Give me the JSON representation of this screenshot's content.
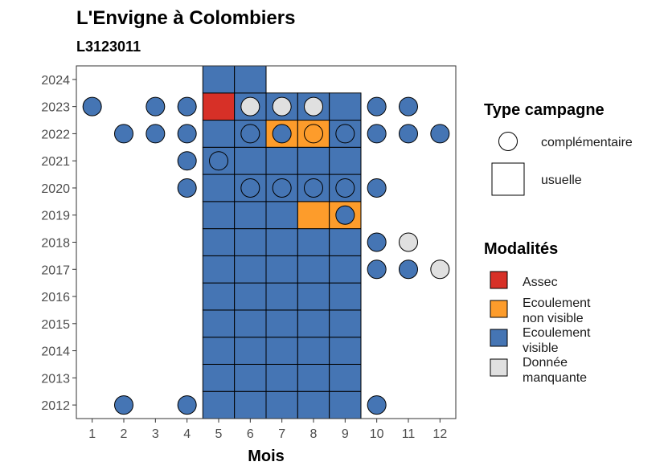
{
  "chart_data": {
    "type": "heatmap",
    "title": "L'Envigne à Colombiers",
    "subtitle": "L3123011",
    "xlabel": "Mois",
    "ylabel": "",
    "x": [
      1,
      2,
      3,
      4,
      5,
      6,
      7,
      8,
      9,
      10,
      11,
      12
    ],
    "y": [
      2012,
      2013,
      2014,
      2015,
      2016,
      2017,
      2018,
      2019,
      2020,
      2021,
      2022,
      2023,
      2024
    ],
    "xlim": [
      0.5,
      12.5
    ],
    "ylim": [
      2011.5,
      2024.5
    ],
    "grid": false,
    "legend_position": "right",
    "legend_shape_title": "Type campagne",
    "legend_shape_labels": {
      "complementaire": "complémentaire",
      "usuelle": "usuelle"
    },
    "legend_fill_title": "Modalités",
    "legend_fill_labels": [
      {
        "key": "assec",
        "lines": [
          "Assec"
        ]
      },
      {
        "key": "non_visible",
        "lines": [
          "Ecoulement",
          "non visible"
        ]
      },
      {
        "key": "visible",
        "lines": [
          "Ecoulement",
          "visible"
        ]
      },
      {
        "key": "manquante",
        "lines": [
          "Donnée",
          "manquante"
        ]
      }
    ],
    "colors": {
      "assec": "#d73027",
      "non_visible": "#fd9c2b",
      "visible": "#4575b4",
      "manquante": "#e0e0e0"
    },
    "usuelle": [
      {
        "year": 2012,
        "month": 5,
        "value": "visible"
      },
      {
        "year": 2012,
        "month": 6,
        "value": "visible"
      },
      {
        "year": 2012,
        "month": 7,
        "value": "visible"
      },
      {
        "year": 2012,
        "month": 8,
        "value": "visible"
      },
      {
        "year": 2012,
        "month": 9,
        "value": "visible"
      },
      {
        "year": 2013,
        "month": 5,
        "value": "visible"
      },
      {
        "year": 2013,
        "month": 6,
        "value": "visible"
      },
      {
        "year": 2013,
        "month": 7,
        "value": "visible"
      },
      {
        "year": 2013,
        "month": 8,
        "value": "visible"
      },
      {
        "year": 2013,
        "month": 9,
        "value": "visible"
      },
      {
        "year": 2014,
        "month": 5,
        "value": "visible"
      },
      {
        "year": 2014,
        "month": 6,
        "value": "visible"
      },
      {
        "year": 2014,
        "month": 7,
        "value": "visible"
      },
      {
        "year": 2014,
        "month": 8,
        "value": "visible"
      },
      {
        "year": 2014,
        "month": 9,
        "value": "visible"
      },
      {
        "year": 2015,
        "month": 5,
        "value": "visible"
      },
      {
        "year": 2015,
        "month": 6,
        "value": "visible"
      },
      {
        "year": 2015,
        "month": 7,
        "value": "visible"
      },
      {
        "year": 2015,
        "month": 8,
        "value": "visible"
      },
      {
        "year": 2015,
        "month": 9,
        "value": "visible"
      },
      {
        "year": 2016,
        "month": 5,
        "value": "visible"
      },
      {
        "year": 2016,
        "month": 6,
        "value": "visible"
      },
      {
        "year": 2016,
        "month": 7,
        "value": "visible"
      },
      {
        "year": 2016,
        "month": 8,
        "value": "visible"
      },
      {
        "year": 2016,
        "month": 9,
        "value": "visible"
      },
      {
        "year": 2017,
        "month": 5,
        "value": "visible"
      },
      {
        "year": 2017,
        "month": 6,
        "value": "visible"
      },
      {
        "year": 2017,
        "month": 7,
        "value": "visible"
      },
      {
        "year": 2017,
        "month": 8,
        "value": "visible"
      },
      {
        "year": 2017,
        "month": 9,
        "value": "visible"
      },
      {
        "year": 2018,
        "month": 5,
        "value": "visible"
      },
      {
        "year": 2018,
        "month": 6,
        "value": "visible"
      },
      {
        "year": 2018,
        "month": 7,
        "value": "visible"
      },
      {
        "year": 2018,
        "month": 8,
        "value": "visible"
      },
      {
        "year": 2018,
        "month": 9,
        "value": "visible"
      },
      {
        "year": 2019,
        "month": 5,
        "value": "visible"
      },
      {
        "year": 2019,
        "month": 6,
        "value": "visible"
      },
      {
        "year": 2019,
        "month": 7,
        "value": "visible"
      },
      {
        "year": 2019,
        "month": 8,
        "value": "non_visible"
      },
      {
        "year": 2019,
        "month": 9,
        "value": "non_visible"
      },
      {
        "year": 2020,
        "month": 5,
        "value": "visible"
      },
      {
        "year": 2020,
        "month": 6,
        "value": "visible"
      },
      {
        "year": 2020,
        "month": 7,
        "value": "visible"
      },
      {
        "year": 2020,
        "month": 8,
        "value": "visible"
      },
      {
        "year": 2020,
        "month": 9,
        "value": "visible"
      },
      {
        "year": 2021,
        "month": 5,
        "value": "visible"
      },
      {
        "year": 2021,
        "month": 6,
        "value": "visible"
      },
      {
        "year": 2021,
        "month": 7,
        "value": "visible"
      },
      {
        "year": 2021,
        "month": 8,
        "value": "visible"
      },
      {
        "year": 2021,
        "month": 9,
        "value": "visible"
      },
      {
        "year": 2022,
        "month": 5,
        "value": "visible"
      },
      {
        "year": 2022,
        "month": 6,
        "value": "visible"
      },
      {
        "year": 2022,
        "month": 7,
        "value": "non_visible"
      },
      {
        "year": 2022,
        "month": 8,
        "value": "non_visible"
      },
      {
        "year": 2022,
        "month": 9,
        "value": "visible"
      },
      {
        "year": 2023,
        "month": 5,
        "value": "assec"
      },
      {
        "year": 2023,
        "month": 6,
        "value": "visible"
      },
      {
        "year": 2023,
        "month": 7,
        "value": "visible"
      },
      {
        "year": 2023,
        "month": 8,
        "value": "visible"
      },
      {
        "year": 2023,
        "month": 9,
        "value": "visible"
      },
      {
        "year": 2024,
        "month": 5,
        "value": "visible"
      },
      {
        "year": 2024,
        "month": 6,
        "value": "visible"
      }
    ],
    "complementaire": [
      {
        "year": 2012,
        "month": 2,
        "value": "visible"
      },
      {
        "year": 2012,
        "month": 4,
        "value": "visible"
      },
      {
        "year": 2012,
        "month": 10,
        "value": "visible"
      },
      {
        "year": 2017,
        "month": 10,
        "value": "visible"
      },
      {
        "year": 2017,
        "month": 11,
        "value": "visible"
      },
      {
        "year": 2017,
        "month": 12,
        "value": "manquante"
      },
      {
        "year": 2018,
        "month": 10,
        "value": "visible"
      },
      {
        "year": 2018,
        "month": 11,
        "value": "manquante"
      },
      {
        "year": 2019,
        "month": 9,
        "value": "visible"
      },
      {
        "year": 2020,
        "month": 4,
        "value": "visible"
      },
      {
        "year": 2020,
        "month": 6,
        "value": "visible"
      },
      {
        "year": 2020,
        "month": 7,
        "value": "visible"
      },
      {
        "year": 2020,
        "month": 8,
        "value": "visible"
      },
      {
        "year": 2020,
        "month": 9,
        "value": "visible"
      },
      {
        "year": 2020,
        "month": 10,
        "value": "visible"
      },
      {
        "year": 2021,
        "month": 4,
        "value": "visible"
      },
      {
        "year": 2021,
        "month": 5,
        "value": "visible"
      },
      {
        "year": 2022,
        "month": 2,
        "value": "visible"
      },
      {
        "year": 2022,
        "month": 3,
        "value": "visible"
      },
      {
        "year": 2022,
        "month": 4,
        "value": "visible"
      },
      {
        "year": 2022,
        "month": 6,
        "value": "visible"
      },
      {
        "year": 2022,
        "month": 7,
        "value": "visible"
      },
      {
        "year": 2022,
        "month": 8,
        "value": "non_visible"
      },
      {
        "year": 2022,
        "month": 9,
        "value": "visible"
      },
      {
        "year": 2022,
        "month": 10,
        "value": "visible"
      },
      {
        "year": 2022,
        "month": 11,
        "value": "visible"
      },
      {
        "year": 2022,
        "month": 12,
        "value": "visible"
      },
      {
        "year": 2023,
        "month": 1,
        "value": "visible"
      },
      {
        "year": 2023,
        "month": 3,
        "value": "visible"
      },
      {
        "year": 2023,
        "month": 4,
        "value": "visible"
      },
      {
        "year": 2023,
        "month": 6,
        "value": "manquante"
      },
      {
        "year": 2023,
        "month": 7,
        "value": "manquante"
      },
      {
        "year": 2023,
        "month": 8,
        "value": "manquante"
      },
      {
        "year": 2023,
        "month": 10,
        "value": "visible"
      },
      {
        "year": 2023,
        "month": 11,
        "value": "visible"
      }
    ]
  }
}
